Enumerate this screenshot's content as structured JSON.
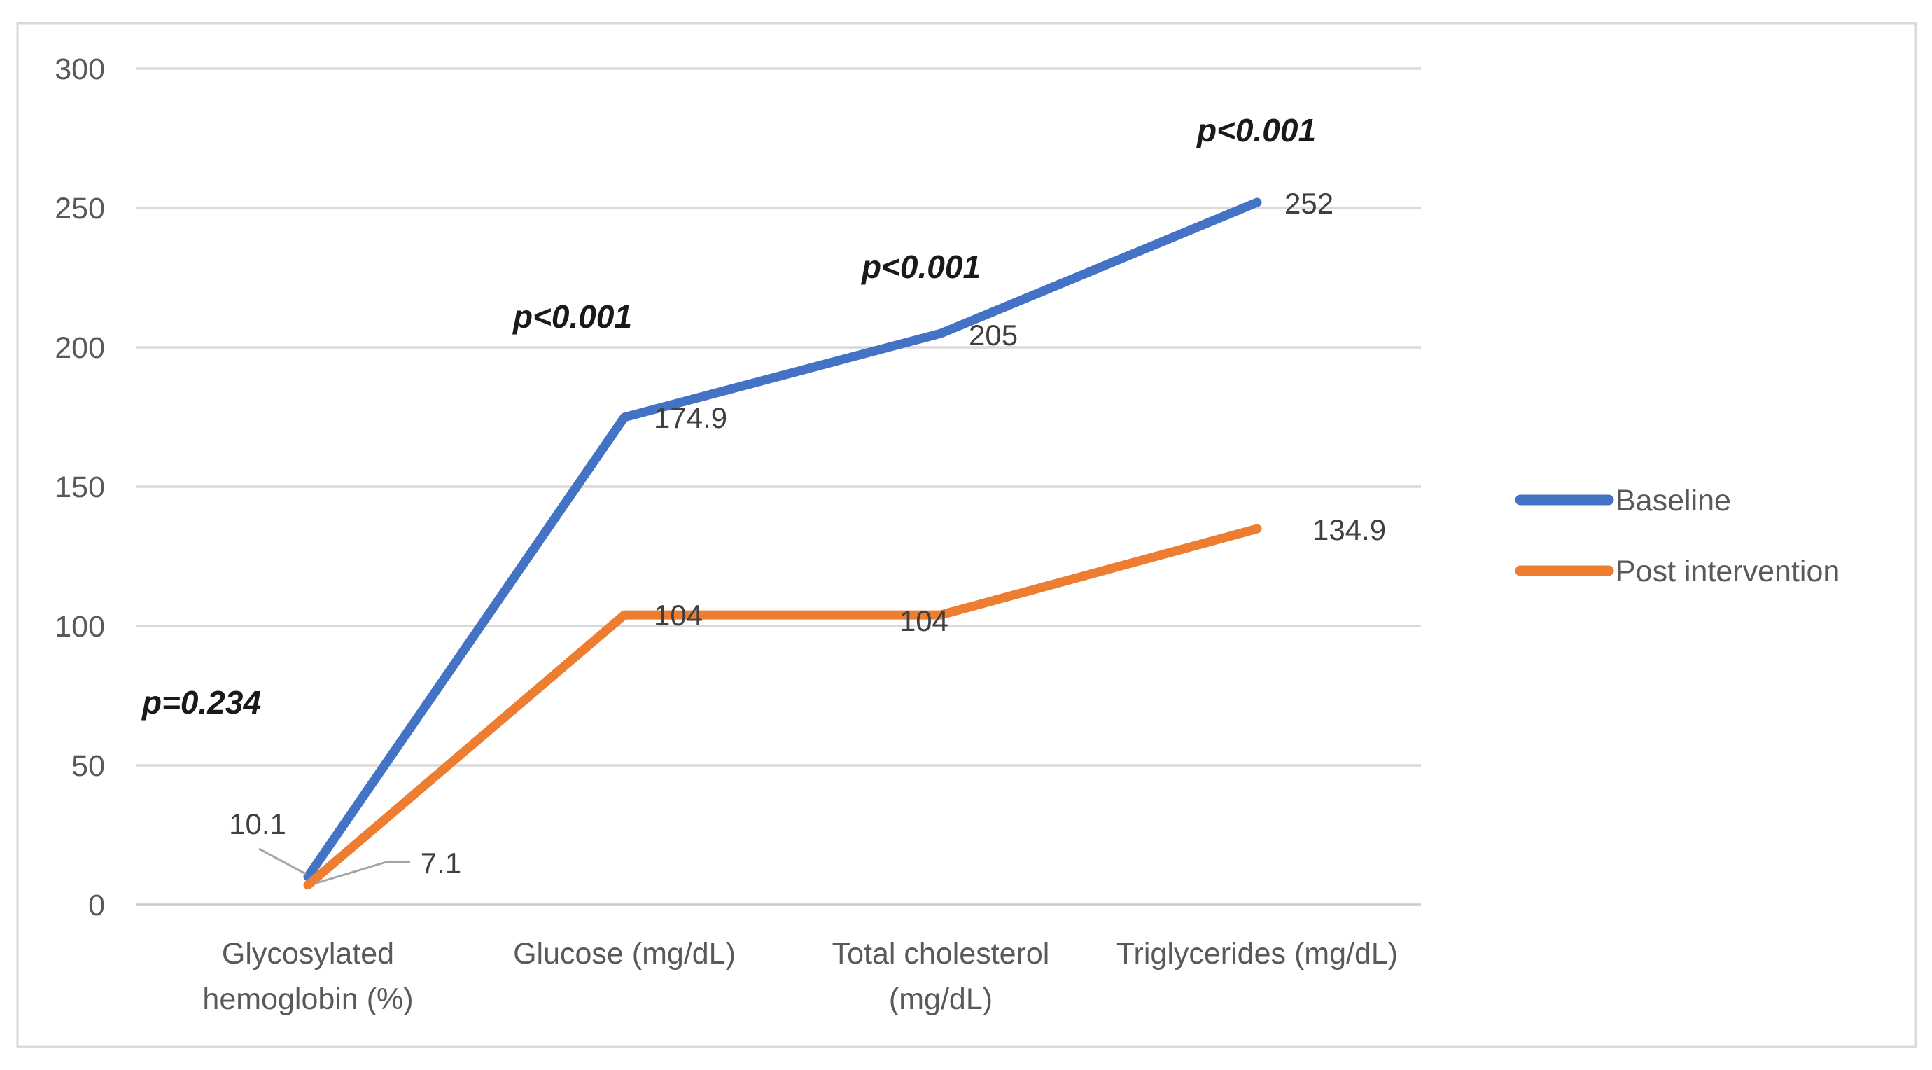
{
  "chart_data": {
    "type": "line",
    "title": "",
    "xlabel": "",
    "ylabel": "",
    "categories": [
      {
        "lines": [
          "Glycosylated",
          "hemoglobin (%)"
        ]
      },
      {
        "lines": [
          "Glucose (mg/dL)"
        ]
      },
      {
        "lines": [
          "Total cholesterol",
          "(mg/dL)"
        ]
      },
      {
        "lines": [
          "Triglycerides (mg/dL)"
        ]
      }
    ],
    "series": [
      {
        "name": "Baseline",
        "color": "#4472C4",
        "values": [
          10.1,
          174.9,
          205,
          252
        ],
        "labels": [
          "10.1",
          "174.9",
          "205",
          "252"
        ]
      },
      {
        "name": "Post intervention",
        "color": "#ED7D31",
        "values": [
          7.1,
          104,
          104,
          134.9
        ],
        "labels": [
          "7.1",
          "104",
          "104",
          "134.9"
        ]
      }
    ],
    "annotations": [
      {
        "text": "p=0.234"
      },
      {
        "text": "p<0.001"
      },
      {
        "text": "p<0.001"
      },
      {
        "text": "p<0.001"
      }
    ],
    "y_axis": {
      "min": 0,
      "max": 300,
      "ticks": [
        0,
        50,
        100,
        150,
        200,
        250,
        300
      ]
    },
    "grid": true,
    "legend_position": "right",
    "colors": {
      "gridline": "#D9D9D9",
      "axis_line": "#C9C9C9",
      "tick_label": "#595959",
      "data_label": "#3F3F3F",
      "annotation": "#1A1A1A",
      "leader_line": "#A6A6A6",
      "frame_border": "#D9D9D9",
      "background": "#FFFFFF"
    }
  },
  "legend": {
    "items": [
      {
        "label": "Baseline",
        "color": "#4472C4"
      },
      {
        "label": "Post intervention",
        "color": "#ED7D31"
      }
    ]
  }
}
